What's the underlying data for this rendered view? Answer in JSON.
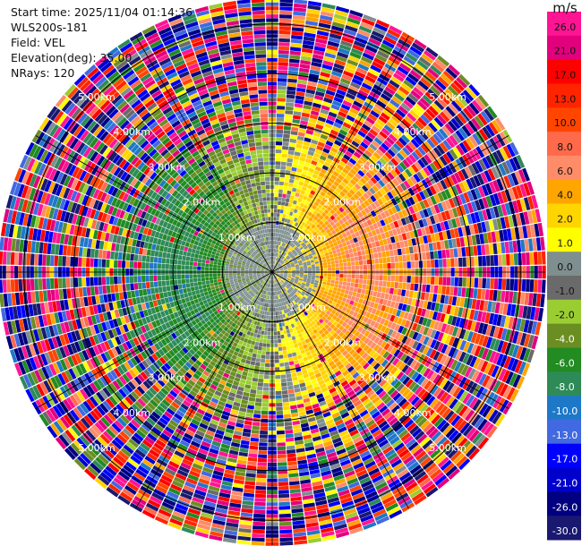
{
  "info": {
    "start_time": "Start time: 2025/11/04 01:14:36",
    "instrument": "WLS200s-181",
    "field": "Field: VEL",
    "elevation": "Elevation(deg): 35.00",
    "nrays": "NRays: 120"
  },
  "chart_data": {
    "type": "heatmap",
    "projection": "polar (PPI)",
    "field": "VEL",
    "elevation_deg": 35.0,
    "n_rays": 120,
    "range_km": [
      0,
      5.5
    ],
    "range_rings_km": [
      1,
      2,
      3,
      4,
      5
    ],
    "ring_labels": [
      "1.00km",
      "2.00km",
      "3.00km",
      "4.00km",
      "5.00km"
    ],
    "colorbar": {
      "unit": "m/s",
      "range": [
        -30,
        30
      ],
      "tick_labels": [
        "26.0",
        "21.0",
        "17.0",
        "13.0",
        "10.0",
        "8.0",
        "6.0",
        "4.0",
        "2.0",
        "1.0",
        "0.0",
        "-1.0",
        "-2.0",
        "-4.0",
        "-6.0",
        "-8.0",
        "-10.0",
        "-13.0",
        "-17.0",
        "-21.0",
        "-26.0",
        "-30.0"
      ],
      "colors": [
        "#ff1493",
        "#e3007d",
        "#ff0000",
        "#ff2400",
        "#ff4500",
        "#ff6a4a",
        "#ff8c69",
        "#ffa500",
        "#ffd500",
        "#ffff00",
        "#7f8f8f",
        "#6a6a6a",
        "#9acd32",
        "#6b8e23",
        "#228b22",
        "#2e8b57",
        "#1e78c8",
        "#4169e1",
        "#0000ff",
        "#0000cd",
        "#000080",
        "#191970"
      ]
    },
    "description_values": {
      "inner_range_km": [
        0,
        2.2
      ],
      "east_side_mean_ms": 7,
      "west_side_mean_ms": -4,
      "center_value_ms": 0,
      "outer_region": "noisy / mixed values"
    }
  }
}
